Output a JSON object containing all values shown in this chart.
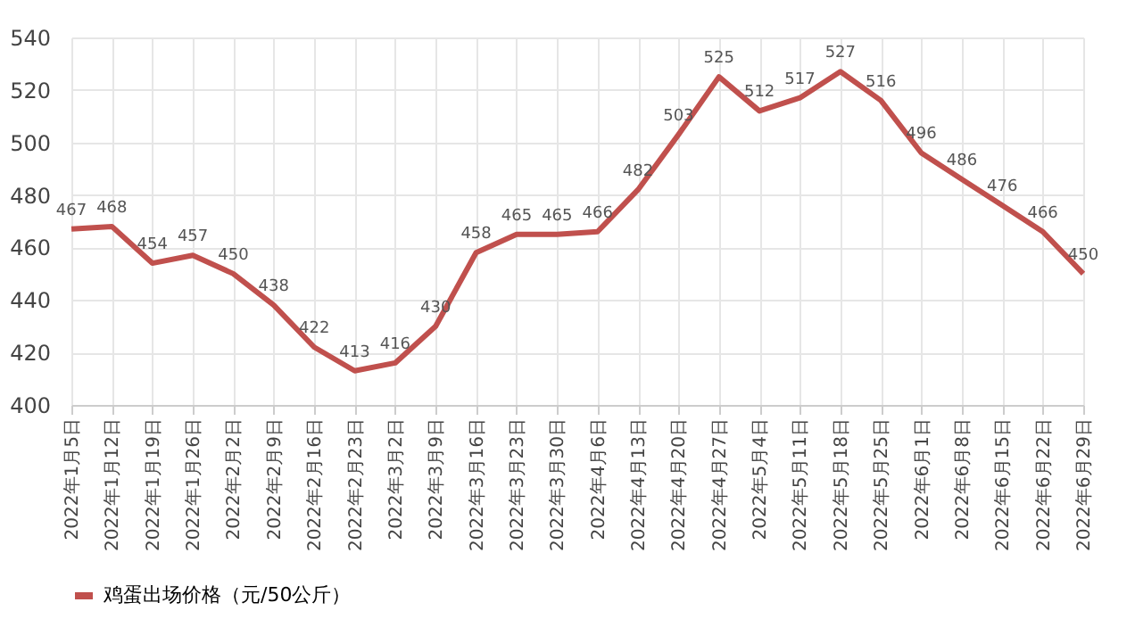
{
  "chart_data": {
    "type": "line",
    "categories": [
      "2022年1月5日",
      "2022年1月12日",
      "2022年1月19日",
      "2022年1月26日",
      "2022年2月2日",
      "2022年2月9日",
      "2022年2月16日",
      "2022年2月23日",
      "2022年3月2日",
      "2022年3月9日",
      "2022年3月16日",
      "2022年3月23日",
      "2022年3月30日",
      "2022年4月6日",
      "2022年4月13日",
      "2022年4月20日",
      "2022年4月27日",
      "2022年5月4日",
      "2022年5月11日",
      "2022年5月18日",
      "2022年5月25日",
      "2022年6月1日",
      "2022年6月8日",
      "2022年6月15日",
      "2022年6月22日",
      "2022年6月29日"
    ],
    "series": [
      {
        "name": "鸡蛋出场价格（元/50公斤）",
        "color": "#c0504d",
        "values": [
          467,
          468,
          454,
          457,
          450,
          438,
          422,
          413,
          416,
          430,
          458,
          465,
          465,
          466,
          482,
          503,
          525,
          512,
          517,
          527,
          516,
          496,
          486,
          476,
          466,
          450
        ]
      }
    ],
    "ylim": [
      400,
      540
    ],
    "yticks": [
      400,
      420,
      440,
      460,
      480,
      500,
      520,
      540
    ],
    "grid": true,
    "legend": "bottom",
    "data_labels": true,
    "marker": "none",
    "line_style": "solid"
  }
}
